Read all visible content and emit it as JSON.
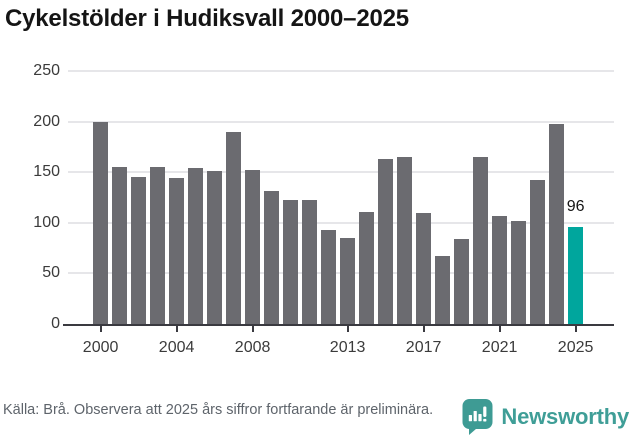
{
  "title": "Cykelstölder i Hudiksvall 2000–2025",
  "chart_data": {
    "type": "bar",
    "title": "Cykelstölder i Hudiksvall 2000–2025",
    "categories": [
      2000,
      2001,
      2002,
      2003,
      2004,
      2005,
      2006,
      2007,
      2008,
      2009,
      2010,
      2011,
      2012,
      2013,
      2014,
      2015,
      2016,
      2017,
      2018,
      2019,
      2020,
      2021,
      2022,
      2023,
      2024,
      2025
    ],
    "values": [
      200,
      155,
      145,
      155,
      144,
      154,
      151,
      190,
      152,
      131,
      123,
      123,
      93,
      85,
      111,
      163,
      165,
      110,
      67,
      84,
      165,
      107,
      102,
      142,
      198,
      96
    ],
    "bar_color": "#6b6b70",
    "highlight": {
      "index": 25,
      "label": "96",
      "color": "#00a69d"
    },
    "xlabel": "",
    "ylabel": "",
    "ylim": [
      0,
      250
    ],
    "yticks": [
      0,
      50,
      100,
      150,
      200,
      250
    ],
    "xticks": [
      2000,
      2004,
      2008,
      2013,
      2017,
      2021,
      2025
    ],
    "grid": "horizontal",
    "legend": "none"
  },
  "footer": {
    "source_note": "Källa: Brå. Observera att 2025 års siffror fortfarande är preliminära."
  },
  "branding": {
    "logo_text": "Newsworthy",
    "logo_icon": "speech-bubble-bar-chart-icon",
    "logo_icon_color": "#3e9b94",
    "logo_text_color": "#3f9e97"
  }
}
